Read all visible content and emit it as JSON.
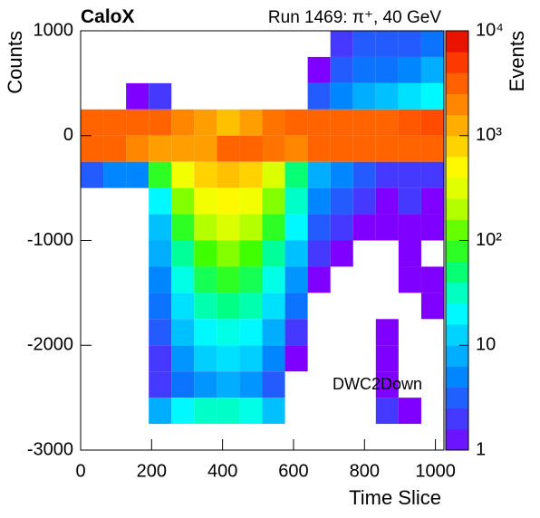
{
  "chart_data": {
    "type": "heatmap",
    "title": "CaloX",
    "subtitle": "Run 1469:   π⁺, 40 GeV",
    "annotation": "DWC2Down",
    "x_label": "Time Slice",
    "y_label": "Counts",
    "z_label": "Events",
    "xlim": [
      0,
      1024
    ],
    "ylim": [
      -3000,
      1000
    ],
    "zlim": [
      1,
      10000
    ],
    "z_log": true,
    "xticks": [
      0,
      200,
      400,
      600,
      800,
      1000
    ],
    "yticks": [
      -3000,
      -2000,
      -1000,
      0,
      1000
    ],
    "zticks": [
      1,
      10,
      {
        "value": 100,
        "label": "10²"
      },
      {
        "value": 1000,
        "label": "10³"
      },
      {
        "value": 10000,
        "label": "10⁴"
      }
    ],
    "colorscale": [
      "#7f00ff",
      "#3f3fff",
      "#0080ff",
      "#00c0ff",
      "#00ffff",
      "#00ff80",
      "#40ff00",
      "#c0ff00",
      "#ffff00",
      "#ffc000",
      "#ff8000",
      "#ff4000",
      "#e00000"
    ],
    "xbins": [
      0,
      64,
      128,
      192,
      256,
      320,
      384,
      448,
      512,
      576,
      640,
      704,
      768,
      832,
      896,
      960,
      1024
    ],
    "ybins": [
      1000,
      750,
      500,
      250,
      0,
      -250,
      -500,
      -750,
      -1000,
      -1250,
      -1500,
      -1750,
      -2000,
      -2250,
      -2500,
      -2750,
      -3000
    ],
    "z": [
      [
        null,
        null,
        null,
        null,
        null,
        null,
        null,
        null,
        null,
        null,
        null,
        2,
        3,
        3,
        3,
        4
      ],
      [
        null,
        null,
        null,
        null,
        null,
        null,
        null,
        null,
        null,
        null,
        1,
        3,
        4,
        4,
        5,
        8
      ],
      [
        null,
        null,
        1,
        2,
        null,
        null,
        null,
        null,
        null,
        null,
        3,
        5,
        8,
        10,
        15,
        20
      ],
      [
        3000,
        3000,
        3000,
        3000,
        2000,
        1500,
        1000,
        1500,
        2500,
        3000,
        3000,
        3000,
        3000,
        3000,
        3500,
        4000
      ],
      [
        3000,
        3000,
        2000,
        1500,
        1500,
        1500,
        3000,
        3000,
        2500,
        2000,
        3000,
        3000,
        3000,
        3000,
        3000,
        3000
      ],
      [
        3,
        5,
        5,
        80,
        400,
        800,
        1000,
        800,
        300,
        50,
        8,
        5,
        3,
        2,
        2,
        2
      ],
      [
        null,
        null,
        null,
        20,
        150,
        400,
        500,
        400,
        150,
        30,
        5,
        3,
        2,
        1,
        2,
        1
      ],
      [
        null,
        null,
        null,
        10,
        80,
        200,
        300,
        200,
        80,
        20,
        3,
        2,
        1,
        1,
        1,
        1
      ],
      [
        null,
        null,
        null,
        8,
        40,
        100,
        150,
        100,
        40,
        10,
        2,
        1,
        null,
        null,
        1,
        null
      ],
      [
        null,
        null,
        null,
        5,
        25,
        60,
        80,
        60,
        25,
        6,
        1,
        null,
        null,
        null,
        1,
        1
      ],
      [
        null,
        null,
        null,
        4,
        15,
        35,
        45,
        35,
        15,
        4,
        null,
        null,
        null,
        null,
        null,
        1
      ],
      [
        null,
        null,
        null,
        3,
        10,
        20,
        25,
        20,
        8,
        2,
        null,
        null,
        null,
        1,
        null,
        null
      ],
      [
        null,
        null,
        null,
        2,
        6,
        12,
        15,
        12,
        5,
        1,
        null,
        null,
        null,
        1,
        null,
        null
      ],
      [
        null,
        null,
        null,
        2,
        4,
        6,
        8,
        6,
        3,
        null,
        null,
        null,
        null,
        1,
        null,
        null
      ],
      [
        null,
        null,
        null,
        8,
        20,
        30,
        30,
        25,
        10,
        null,
        null,
        null,
        null,
        2,
        1,
        null
      ],
      [
        null,
        null,
        null,
        null,
        null,
        null,
        null,
        null,
        null,
        null,
        null,
        null,
        null,
        null,
        null,
        null
      ]
    ]
  }
}
